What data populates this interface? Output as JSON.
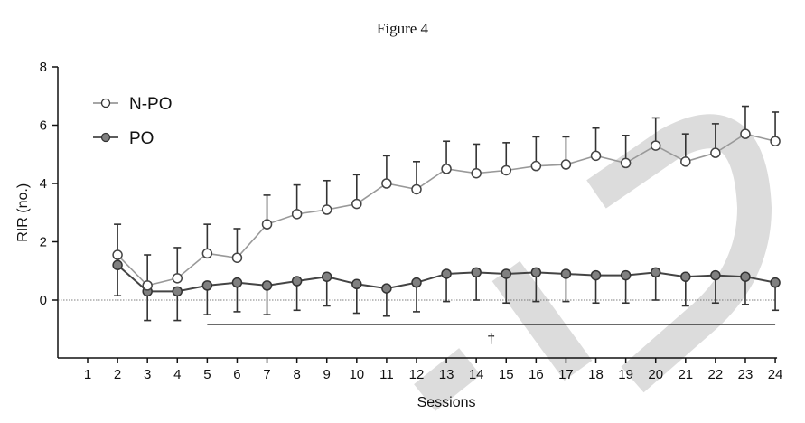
{
  "chart_data": {
    "type": "line",
    "title": "Figure 4",
    "xlabel": "Sessions",
    "ylabel": "RIR (no.)",
    "xlim": [
      0,
      24
    ],
    "ylim": [
      -2,
      8
    ],
    "yticks": [
      "0",
      "2",
      "4",
      "6",
      "8"
    ],
    "x": [
      2,
      3,
      4,
      5,
      6,
      7,
      8,
      9,
      10,
      11,
      12,
      13,
      14,
      15,
      16,
      17,
      18,
      19,
      20,
      21,
      22,
      23,
      24
    ],
    "xticks": [
      "1",
      "2",
      "3",
      "4",
      "5",
      "6",
      "7",
      "8",
      "9",
      "10",
      "11",
      "12",
      "13",
      "14",
      "15",
      "16",
      "17",
      "18",
      "19",
      "20",
      "21",
      "22",
      "23",
      "24"
    ],
    "legend_position": "top-left",
    "series": [
      {
        "name": "N-PO",
        "marker": "open-circle",
        "color": "#9a9a9a",
        "values": [
          1.55,
          0.5,
          0.75,
          1.6,
          1.45,
          2.6,
          2.95,
          3.1,
          3.3,
          4.0,
          3.8,
          4.5,
          4.35,
          4.45,
          4.6,
          4.65,
          4.95,
          4.7,
          5.3,
          4.75,
          5.05,
          5.7,
          5.45
        ],
        "error_upper": [
          2.6,
          1.55,
          1.8,
          2.6,
          2.45,
          3.6,
          3.95,
          4.1,
          4.3,
          4.95,
          4.75,
          5.45,
          5.35,
          5.4,
          5.6,
          5.6,
          5.9,
          5.65,
          6.25,
          5.7,
          6.05,
          6.65,
          6.45
        ]
      },
      {
        "name": "PO",
        "marker": "filled-circle",
        "color": "#444444",
        "values": [
          1.2,
          0.3,
          0.3,
          0.5,
          0.6,
          0.5,
          0.65,
          0.8,
          0.55,
          0.4,
          0.6,
          0.9,
          0.95,
          0.9,
          0.95,
          0.9,
          0.85,
          0.85,
          0.95,
          0.8,
          0.85,
          0.8,
          0.6
        ],
        "error_lower": [
          0.15,
          -0.7,
          -0.7,
          -0.5,
          -0.4,
          -0.5,
          -0.35,
          -0.2,
          -0.45,
          -0.55,
          -0.4,
          -0.05,
          0.0,
          -0.1,
          -0.05,
          -0.05,
          -0.1,
          -0.1,
          0.0,
          -0.2,
          -0.1,
          -0.15,
          -0.35
        ]
      }
    ],
    "significance": {
      "symbol": "†",
      "from_session": 5,
      "to_session": 24
    },
    "reference_line_y": 0
  },
  "watermark": "TED"
}
